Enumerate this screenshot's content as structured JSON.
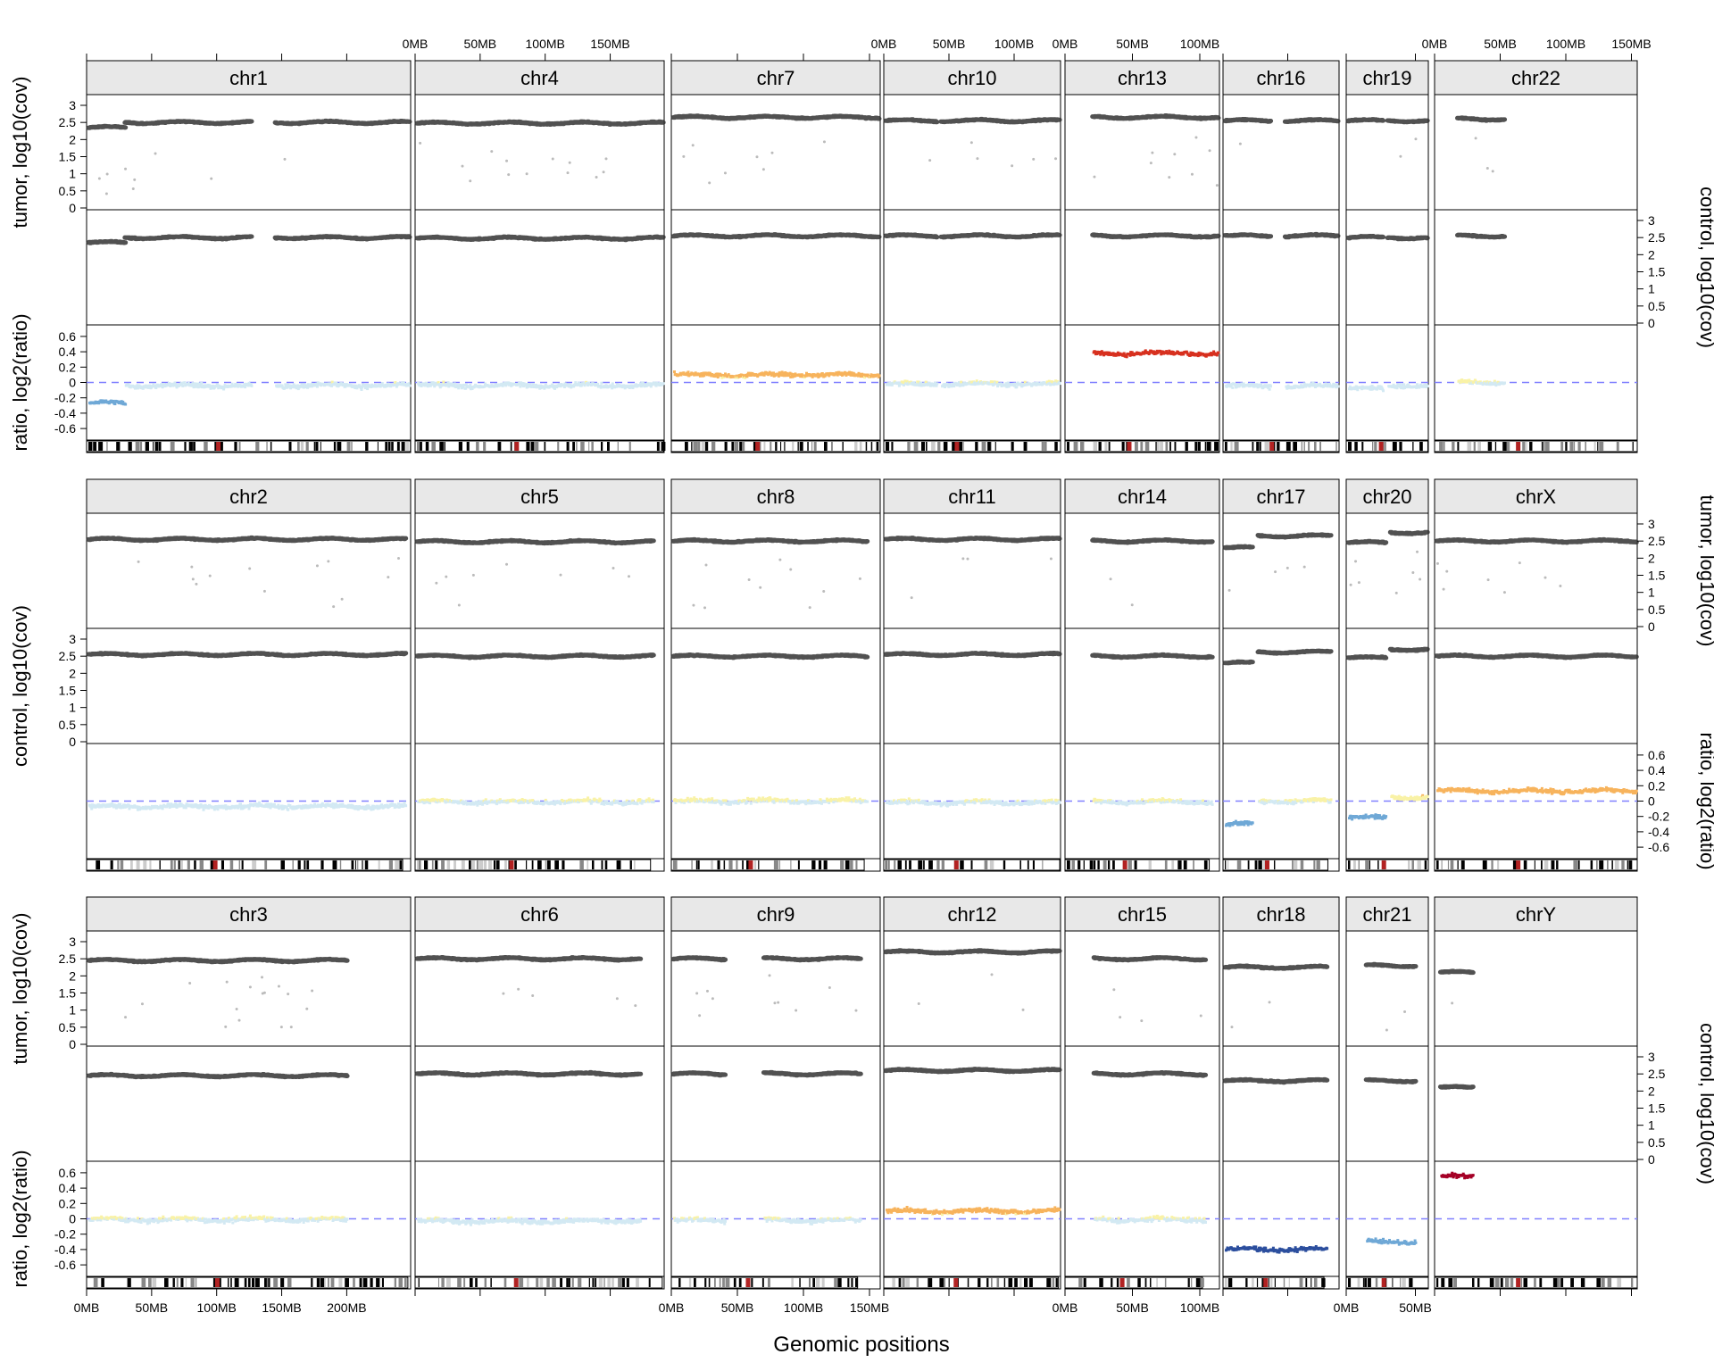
{
  "chart_data": {
    "type": "scatter",
    "title": "",
    "xlabel": "Genomic positions",
    "labels": {
      "tumor": "tumor, log10(cov)",
      "control": "control, log10(cov)",
      "ratio": "ratio, log2(ratio)"
    },
    "cov_axis": {
      "min": 0,
      "max": 3,
      "ticks": [
        "0",
        "0.5",
        "1",
        "1.5",
        "2",
        "2.5",
        "3"
      ]
    },
    "ratio_axis": {
      "min": -0.75,
      "max": 0.75,
      "ticks": [
        "-0.6",
        "-0.4",
        "-0.2",
        "0",
        "0.2",
        "0.4",
        "0.6"
      ]
    },
    "x_ticks": [
      "0MB",
      "50MB",
      "100MB",
      "150MB",
      "200MB"
    ],
    "rows": [
      {
        "chromosomes": [
          {
            "name": "chr1",
            "length_mb": 249,
            "data_end_mb": 249,
            "tumor": 2.5,
            "control": 2.5,
            "ratio": -0.04,
            "segments": [
              {
                "start": 0,
                "end": 28,
                "ratio": -0.27,
                "cov": 2.35
              }
            ],
            "gap": [
              125,
              143
            ]
          },
          {
            "name": "chr4",
            "length_mb": 191,
            "data_end_mb": 191,
            "tumor": 2.48,
            "control": 2.48,
            "ratio": -0.04
          },
          {
            "name": "chr7",
            "length_mb": 159,
            "data_end_mb": 159,
            "tumor": 2.65,
            "control": 2.55,
            "ratio": 0.1
          },
          {
            "name": "chr10",
            "length_mb": 136,
            "data_end_mb": 136,
            "tumor": 2.55,
            "control": 2.55,
            "ratio": -0.02,
            "gap": [
              39,
              42
            ]
          },
          {
            "name": "chr13",
            "length_mb": 115,
            "data_end_mb": 115,
            "tumor": 2.65,
            "control": 2.55,
            "ratio": 0.38,
            "data_start_mb": 19
          },
          {
            "name": "chr16",
            "length_mb": 90,
            "data_end_mb": 90,
            "tumor": 2.55,
            "control": 2.55,
            "ratio": -0.05,
            "gap": [
              35,
              46
            ]
          },
          {
            "name": "chr19",
            "length_mb": 59,
            "data_end_mb": 59,
            "tumor": 2.55,
            "control": 2.5,
            "ratio": -0.04,
            "segments": [
              {
                "start": 0,
                "end": 25,
                "ratio": -0.08
              }
            ],
            "gap": [
              25,
              28
            ]
          },
          {
            "name": "chr22",
            "length_mb": 155,
            "data_end_mb": 51,
            "tumor": 2.6,
            "control": 2.55,
            "ratio": 0.0,
            "data_start_mb": 16
          }
        ]
      },
      {
        "chromosomes": [
          {
            "name": "chr2",
            "length_mb": 243,
            "data_end_mb": 243,
            "tumor": 2.55,
            "control": 2.55,
            "ratio": -0.07
          },
          {
            "name": "chr5",
            "length_mb": 181,
            "data_end_mb": 181,
            "tumor": 2.48,
            "control": 2.5,
            "ratio": -0.01
          },
          {
            "name": "chr8",
            "length_mb": 146,
            "data_end_mb": 146,
            "tumor": 2.5,
            "control": 2.5,
            "ratio": 0.0
          },
          {
            "name": "chr11",
            "length_mb": 135,
            "data_end_mb": 135,
            "tumor": 2.55,
            "control": 2.55,
            "ratio": -0.02
          },
          {
            "name": "chr14",
            "length_mb": 107,
            "data_end_mb": 107,
            "tumor": 2.5,
            "control": 2.5,
            "ratio": -0.01,
            "data_start_mb": 19
          },
          {
            "name": "chr17",
            "length_mb": 81,
            "data_end_mb": 81,
            "tumor": 2.65,
            "control": 2.62,
            "ratio": 0.0,
            "segments": [
              {
                "start": 0,
                "end": 21,
                "ratio": -0.3,
                "cov": 2.3
              }
            ],
            "gap": [
              21,
              25
            ]
          },
          {
            "name": "chr20",
            "length_mb": 64,
            "data_end_mb": 64,
            "tumor": 2.75,
            "control": 2.7,
            "ratio": 0.05,
            "segments": [
              {
                "start": 0,
                "end": 27,
                "ratio": -0.22,
                "cov": 2.45
              }
            ],
            "gap": [
              27,
              30
            ]
          },
          {
            "name": "chrX",
            "length_mb": 155,
            "data_end_mb": 155,
            "tumor": 2.5,
            "control": 2.5,
            "ratio": 0.13
          }
        ]
      },
      {
        "chromosomes": [
          {
            "name": "chr3",
            "length_mb": 247,
            "data_end_mb": 198,
            "tumor": 2.45,
            "control": 2.45,
            "ratio": -0.01
          },
          {
            "name": "chr6",
            "length_mb": 190,
            "data_end_mb": 171,
            "tumor": 2.5,
            "control": 2.5,
            "ratio": -0.03
          },
          {
            "name": "chr9",
            "length_mb": 141,
            "data_end_mb": 141,
            "tumor": 2.5,
            "control": 2.5,
            "ratio": -0.02,
            "gap": [
              39,
              68
            ]
          },
          {
            "name": "chr12",
            "length_mb": 134,
            "data_end_mb": 134,
            "tumor": 2.7,
            "control": 2.6,
            "ratio": 0.1
          },
          {
            "name": "chr15",
            "length_mb": 102,
            "data_end_mb": 102,
            "tumor": 2.5,
            "control": 2.5,
            "ratio": -0.01,
            "data_start_mb": 20
          },
          {
            "name": "chr18",
            "length_mb": 78,
            "data_end_mb": 78,
            "tumor": 2.25,
            "control": 2.3,
            "ratio": -0.4
          },
          {
            "name": "chr21",
            "length_mb": 64,
            "data_end_mb": 48,
            "tumor": 2.3,
            "control": 2.3,
            "ratio": -0.3,
            "data_start_mb": 13
          },
          {
            "name": "chrY",
            "length_mb": 155,
            "data_end_mb": 27,
            "tumor": 2.1,
            "control": 2.1,
            "ratio": 0.55,
            "data_start_mb": 3
          }
        ]
      }
    ],
    "colors": {
      "strip_bg": "#e8e8e8",
      "points_dark": "#333333",
      "zero_line": "#8080ff",
      "ratio_neg_strong": "#2c4f9e",
      "ratio_neg": "#6fa8d6",
      "ratio_neutral_neg": "#d3e9f3",
      "ratio_neutral_pos": "#f9f2a6",
      "ratio_pos": "#f7b35c",
      "ratio_pos_strong": "#d7301f",
      "ratio_very_high": "#a50026"
    }
  }
}
